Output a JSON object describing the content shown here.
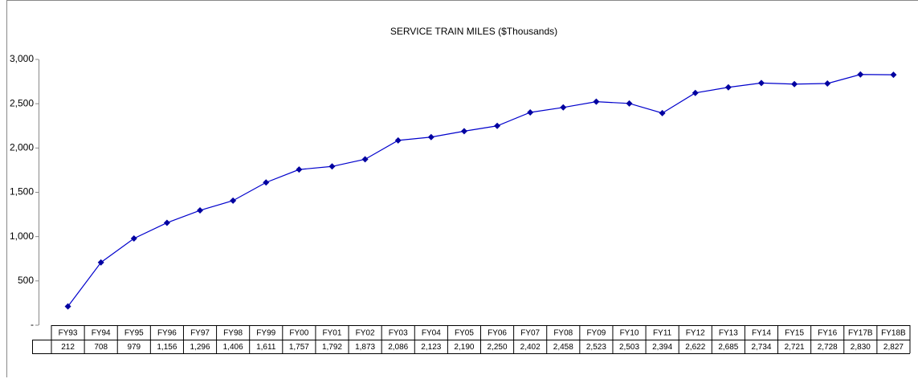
{
  "chart_data": {
    "type": "line",
    "title": "SERVICE TRAIN MILES ($Thousands)",
    "categories": [
      "FY93",
      "FY94",
      "FY95",
      "FY96",
      "FY97",
      "FY98",
      "FY99",
      "FY00",
      "FY01",
      "FY02",
      "FY03",
      "FY04",
      "FY05",
      "FY06",
      "FY07",
      "FY08",
      "FY09",
      "FY10",
      "FY11",
      "FY12",
      "FY13",
      "FY14",
      "FY15",
      "FY16",
      "FY17B",
      "FY18B"
    ],
    "values": [
      212,
      708,
      979,
      1156,
      1296,
      1406,
      1611,
      1757,
      1792,
      1873,
      2086,
      2123,
      2190,
      2250,
      2402,
      2458,
      2523,
      2503,
      2394,
      2622,
      2685,
      2734,
      2721,
      2728,
      2830,
      2827
    ],
    "value_labels": [
      "212",
      "708",
      "979",
      "1,156",
      "1,296",
      "1,406",
      "1,611",
      "1,757",
      "1,792",
      "1,873",
      "2,086",
      "2,123",
      "2,190",
      "2,250",
      "2,402",
      "2,458",
      "2,523",
      "2,503",
      "2,394",
      "2,622",
      "2,685",
      "2,734",
      "2,721",
      "2,728",
      "2,830",
      "2,827"
    ],
    "color": "#0000cc",
    "ylim": [
      0,
      3000
    ],
    "yticks": [
      {
        "value": 0,
        "label": "-"
      },
      500,
      {
        "value": 1000,
        "label": "1,000"
      },
      {
        "value": 1500,
        "label": "1,500"
      },
      {
        "value": 2000,
        "label": "2,000"
      },
      {
        "value": 2500,
        "label": "2,500"
      },
      {
        "value": 3000,
        "label": "3,000"
      }
    ],
    "grid": false
  }
}
